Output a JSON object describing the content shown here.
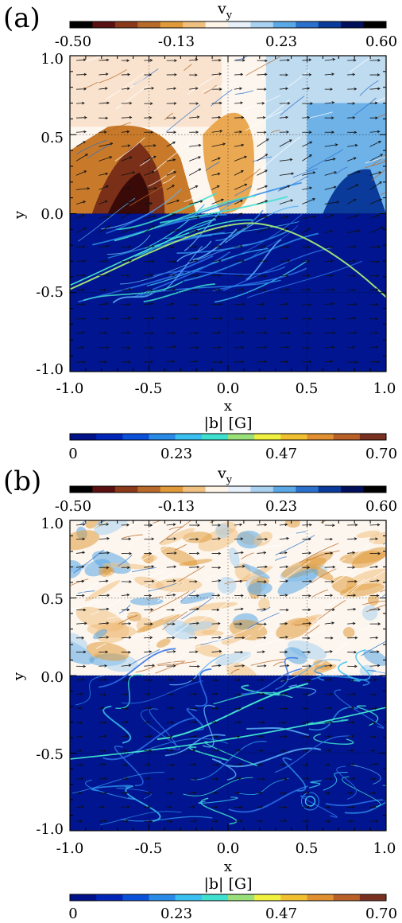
{
  "chart_data": [
    {
      "type": "heatmap",
      "panel_label": "(a)",
      "xlabel": "x",
      "ylabel": "y",
      "xlim": [
        -1.0,
        1.0
      ],
      "ylim": [
        -1.0,
        1.0
      ],
      "x_ticks": [
        "-1.0",
        "-0.5",
        "0.0",
        "0.5",
        "1.0"
      ],
      "y_ticks": [
        "-1.0",
        "-0.5",
        "0.0",
        "0.5",
        "1.0"
      ],
      "grid": true,
      "top_field": {
        "label": "v",
        "label_sub": "y",
        "range": [
          -0.5,
          0.6
        ],
        "ticks": [
          "-0.50",
          "-0.13",
          "0.23",
          "0.60"
        ],
        "y_extent": [
          0.0,
          1.0
        ]
      },
      "bottom_field": {
        "label": "|b| [G]",
        "range": [
          0,
          0.7
        ],
        "ticks": [
          "0",
          "0.23",
          "0.47",
          "0.70"
        ],
        "y_extent": [
          -1.0,
          0.0
        ]
      }
    },
    {
      "type": "heatmap",
      "panel_label": "(b)",
      "xlabel": "x",
      "ylabel": "y",
      "xlim": [
        -1.0,
        1.0
      ],
      "ylim": [
        -1.0,
        1.0
      ],
      "x_ticks": [
        "-1.0",
        "-0.5",
        "0.0",
        "0.5",
        "1.0"
      ],
      "y_ticks": [
        "-1.0",
        "-0.5",
        "0.0",
        "0.5",
        "1.0"
      ],
      "grid": true,
      "top_field": {
        "label": "v",
        "label_sub": "y",
        "range": [
          -0.5,
          0.6
        ],
        "ticks": [
          "-0.50",
          "-0.13",
          "0.23",
          "0.60"
        ],
        "y_extent": [
          0.0,
          1.0
        ]
      },
      "bottom_field": {
        "label": "|b| [G]",
        "range": [
          0,
          0.7
        ],
        "ticks": [
          "0",
          "0.23",
          "0.47",
          "0.70"
        ],
        "y_extent": [
          -1.0,
          0.0
        ]
      }
    }
  ],
  "colormaps": {
    "vy": [
      "#000000",
      "#5a1010",
      "#8a3a1a",
      "#b86a2a",
      "#e09a3a",
      "#f0c080",
      "#fff4e8",
      "#e8f0fa",
      "#a9d1f0",
      "#5aa8e6",
      "#2a70cc",
      "#0a3a9a",
      "#00105a",
      "#000000"
    ],
    "b": [
      "#00128a",
      "#0026b8",
      "#0a50d8",
      "#2a8ae8",
      "#3ac0f0",
      "#40e0d0",
      "#9ae07a",
      "#f0f040",
      "#f0c030",
      "#e09030",
      "#b86028",
      "#7a3020"
    ]
  }
}
